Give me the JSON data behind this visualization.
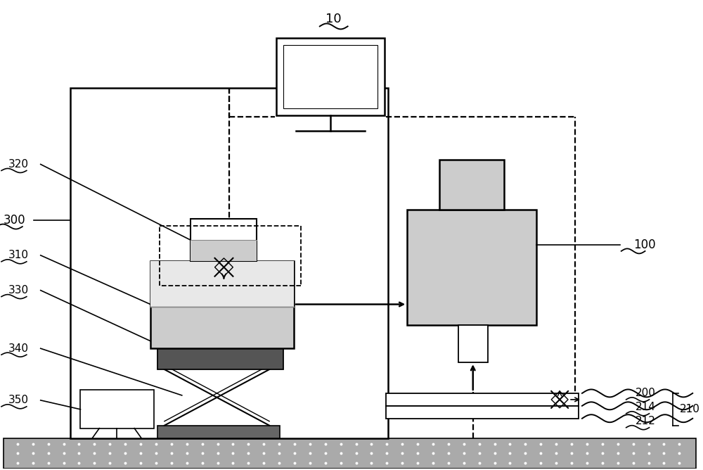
{
  "bg_color": "#ffffff",
  "line_color": "#000000",
  "light_gray": "#cccccc",
  "dark_gray": "#888888",
  "darker_gray": "#555555",
  "label_10": "10",
  "label_100": "100",
  "label_200": "200",
  "label_210": "210",
  "label_212": "212",
  "label_214": "214",
  "label_300": "300",
  "label_310": "310",
  "label_320": "320",
  "label_330": "330",
  "label_340": "340",
  "label_350": "350"
}
